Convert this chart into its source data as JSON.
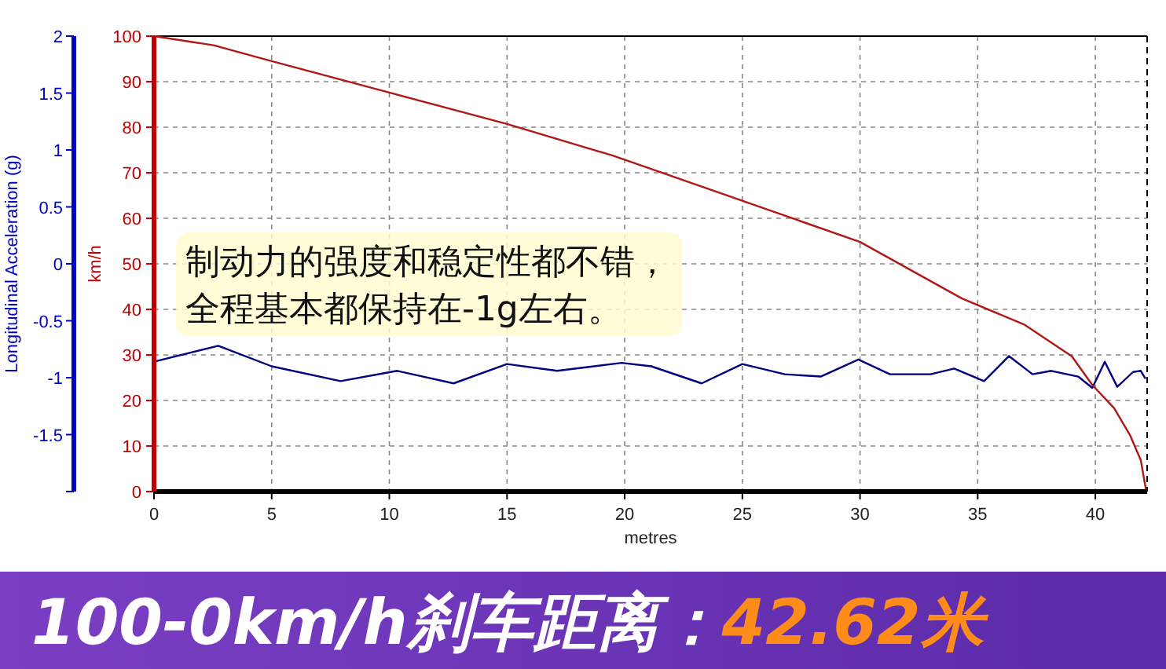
{
  "chart_data": {
    "type": "line",
    "xlabel": "metres",
    "ylabel": "Longitudinal Acceleration (g)",
    "y2label": "km/h",
    "xlim": [
      0,
      42.2
    ],
    "xticks": [
      0,
      5,
      10,
      15,
      20,
      25,
      30,
      35,
      40
    ],
    "ylim": [
      -2,
      2
    ],
    "yticks": [
      {
        "value": -2,
        "label": null
      },
      -1.5,
      -1,
      -0.5,
      0,
      0.5,
      1,
      1.5,
      2
    ],
    "y2lim": [
      0,
      100
    ],
    "y2ticks": [
      0,
      10,
      20,
      30,
      40,
      50,
      60,
      70,
      80,
      90,
      100
    ],
    "grid": true,
    "series": [
      {
        "color": "#000080",
        "axis": "y",
        "x": [
          0,
          2.73,
          5,
          7.93,
          10.33,
          12.73,
          15,
          17.13,
          19.87,
          21.13,
          23.27,
          25,
          26.8,
          28.33,
          29.93,
          31.27,
          33,
          34,
          35.27,
          36.33,
          37.33,
          38.13,
          39.27,
          39.87,
          40.4,
          40.93,
          41.6,
          41.93,
          42.13
        ],
        "values": [
          -0.86,
          -0.72,
          -0.9,
          -1.03,
          -0.94,
          -1.05,
          -0.88,
          -0.94,
          -0.87,
          -0.9,
          -1.05,
          -0.88,
          -0.97,
          -0.99,
          -0.84,
          -0.97,
          -0.97,
          -0.92,
          -1.03,
          -0.81,
          -0.97,
          -0.94,
          -0.99,
          -1.09,
          -0.86,
          -1.08,
          -0.95,
          -0.94,
          -1.01
        ]
      },
      {
        "color": "#b01818",
        "axis": "y2",
        "x": [
          0,
          2.53,
          5,
          10,
          15,
          19.47,
          24.47,
          30,
          34.33,
          37,
          39,
          39.87,
          40.8,
          41.47,
          41.93,
          42.13,
          42.15
        ],
        "values": [
          100,
          98,
          94.5,
          87.6,
          80.7,
          73.8,
          64.8,
          54.8,
          42.4,
          36.6,
          29.7,
          23.4,
          18.3,
          12.4,
          6.9,
          1,
          0
        ]
      }
    ],
    "annotations": [
      "制动力的强度和稳定性都不错，",
      "全程基本都保持在-1g左右。",
      "100-0km/h刹车距离：",
      "42.62米"
    ]
  }
}
